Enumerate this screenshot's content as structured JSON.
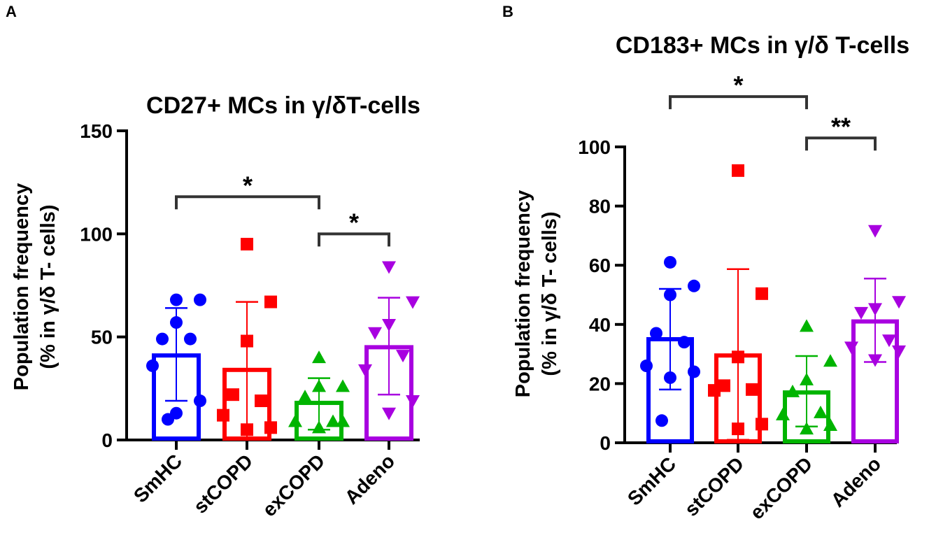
{
  "colors": {
    "SmHC": "#0000ff",
    "stCOPD": "#ff0000",
    "exCOPD": "#00b400",
    "Adeno": "#a800e0",
    "bracket": "#333333"
  },
  "chart_data": [
    {
      "panel_label": "A",
      "type": "bar",
      "title": "CD27+ MCs in γ/δT-cells",
      "ylabel_line1": "Population frequency",
      "ylabel_line2": "(% in γ/δ T- cells)",
      "xlabel": "",
      "ylim": [
        0,
        150
      ],
      "yticks": [
        0,
        50,
        100,
        150
      ],
      "ytick_labels": [
        "0",
        "50",
        "100",
        "150"
      ],
      "categories": [
        "SmHC",
        "stCOPD",
        "exCOPD",
        "Adeno"
      ],
      "markers": [
        "circle",
        "square",
        "triangle-up",
        "triangle-down"
      ],
      "means": [
        41,
        34,
        18,
        45
      ],
      "sd": [
        [
          19,
          64
        ],
        [
          1,
          67
        ],
        [
          5,
          30
        ],
        [
          22,
          69
        ]
      ],
      "points": [
        [
          68,
          68,
          57,
          49,
          49,
          36,
          19,
          13,
          10
        ],
        [
          95,
          67,
          48,
          22,
          19,
          12,
          6,
          5
        ],
        [
          40,
          26,
          26,
          21,
          9,
          9,
          9,
          6
        ],
        [
          84,
          67,
          56,
          52,
          41,
          34,
          19,
          13
        ]
      ],
      "significance": [
        {
          "from": 0,
          "to": 2,
          "label": "*",
          "y": 118
        },
        {
          "from": 2,
          "to": 3,
          "label": "*",
          "y": 100
        }
      ]
    },
    {
      "panel_label": "B",
      "type": "bar",
      "title": "CD183+ MCs in γ/δ T-cells",
      "ylabel_line1": "Population frequency",
      "ylabel_line2": "(% in γ/δ T- cells)",
      "xlabel": "",
      "ylim": [
        0,
        100
      ],
      "yticks": [
        0,
        20,
        40,
        60,
        80,
        100
      ],
      "ytick_labels": [
        "0",
        "20",
        "40",
        "60",
        "80",
        "100"
      ],
      "categories": [
        "SmHC",
        "stCOPD",
        "exCOPD",
        "Adeno"
      ],
      "markers": [
        "circle",
        "square",
        "triangle-up",
        "triangle-down"
      ],
      "means": [
        35,
        29.5,
        17,
        41
      ],
      "sd": [
        [
          18,
          52
        ],
        [
          1,
          58.7
        ],
        [
          5.5,
          29.3
        ],
        [
          27.3,
          55.5
        ]
      ],
      "points": [
        [
          61,
          53,
          50,
          37,
          34,
          26,
          24,
          22,
          7.5
        ],
        [
          92,
          50.4,
          29,
          19.3,
          18,
          17.7,
          6.3,
          4.7
        ],
        [
          39.4,
          27.6,
          21.3,
          17.3,
          10.2,
          9.5,
          5.9,
          4.7
        ],
        [
          71.7,
          47.7,
          45.3,
          44,
          34.7,
          32.3,
          31,
          28
        ]
      ],
      "significance": [
        {
          "from": 0,
          "to": 2,
          "label": "*",
          "y": 117
        },
        {
          "from": 2,
          "to": 3,
          "label": "**",
          "y": 103
        }
      ]
    }
  ]
}
